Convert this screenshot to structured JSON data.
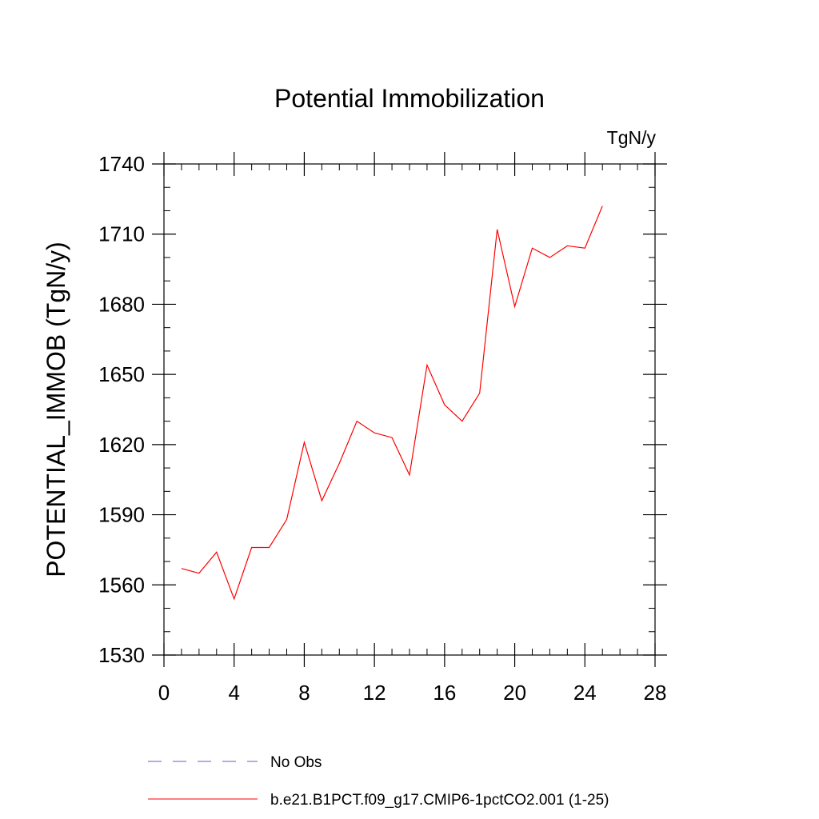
{
  "chart_data": {
    "type": "line",
    "title": "Potential Immobilization",
    "units_label": "TgN/y",
    "ylabel": "POTENTIAL_IMMOB  (TgN/y)",
    "xlabel": "",
    "xlim": [
      0,
      28
    ],
    "ylim": [
      1530,
      1740
    ],
    "x_ticks": [
      0,
      4,
      8,
      12,
      16,
      20,
      24,
      28
    ],
    "y_ticks": [
      1530,
      1560,
      1590,
      1620,
      1650,
      1680,
      1710,
      1740
    ],
    "grid": false,
    "legend_position": "bottom",
    "series": [
      {
        "name": "No Obs",
        "style": "dashed",
        "color": "#6a5acd",
        "x": [],
        "values": []
      },
      {
        "name": "b.e21.B1PCT.f09_g17.CMIP6-1pctCO2.001 (1-25)",
        "style": "solid",
        "color": "#ff0000",
        "x": [
          1,
          2,
          3,
          4,
          5,
          6,
          7,
          8,
          9,
          10,
          11,
          12,
          13,
          14,
          15,
          16,
          17,
          18,
          19,
          20,
          21,
          22,
          23,
          24,
          25
        ],
        "values": [
          1567,
          1565,
          1574,
          1554,
          1576,
          1576,
          1588,
          1621,
          1596,
          1612,
          1630,
          1625,
          1623,
          1607,
          1654,
          1637,
          1630,
          1642,
          1712,
          1679,
          1704,
          1700,
          1705,
          1704,
          1722
        ]
      }
    ]
  }
}
